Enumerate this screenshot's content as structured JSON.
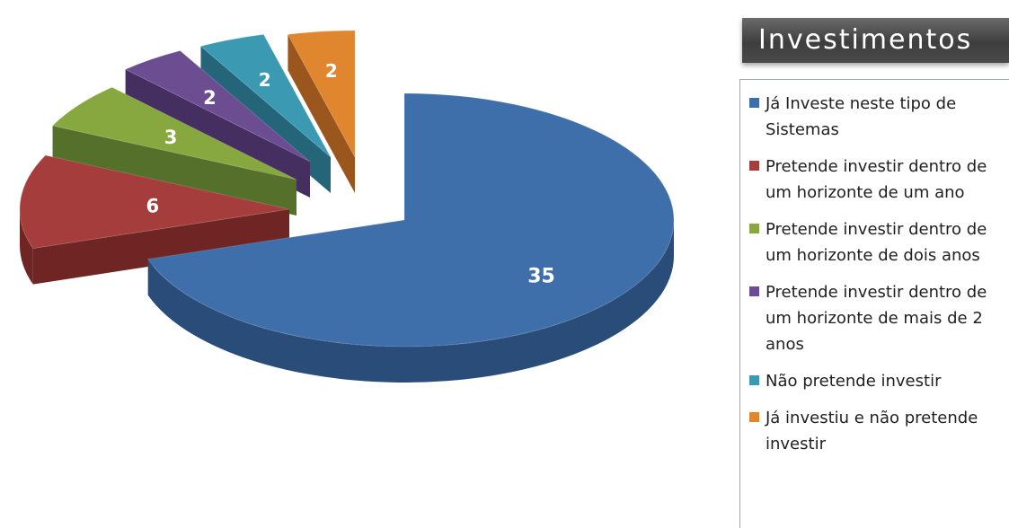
{
  "chart_data": {
    "type": "pie",
    "title": "Investimentos",
    "legend_position": "right",
    "slices": [
      {
        "name": "Já Investe neste tipo de Sistemas",
        "value": 35,
        "label": "35",
        "color": "#3f6faa",
        "dark": "#2a4c78"
      },
      {
        "name": "Pretende investir dentro de um horizonte de um ano",
        "value": 6,
        "label": "6",
        "color": "#a43d3b",
        "dark": "#6e2524"
      },
      {
        "name": "Pretende investir dentro de um horizonte de dois anos",
        "value": 3,
        "label": "3",
        "color": "#86a83e",
        "dark": "#55702a"
      },
      {
        "name": "Pretende investir dentro de um horizonte de mais de 2 anos",
        "value": 2,
        "label": "2",
        "color": "#6d4d92",
        "dark": "#452f60"
      },
      {
        "name": "Não pretende investir",
        "value": 2,
        "label": "2",
        "color": "#3b9ab2",
        "dark": "#25657a"
      },
      {
        "name": "Já investiu e não pretende investir",
        "value": 2,
        "label": "2",
        "color": "#e0862f",
        "dark": "#9a561c"
      }
    ]
  }
}
